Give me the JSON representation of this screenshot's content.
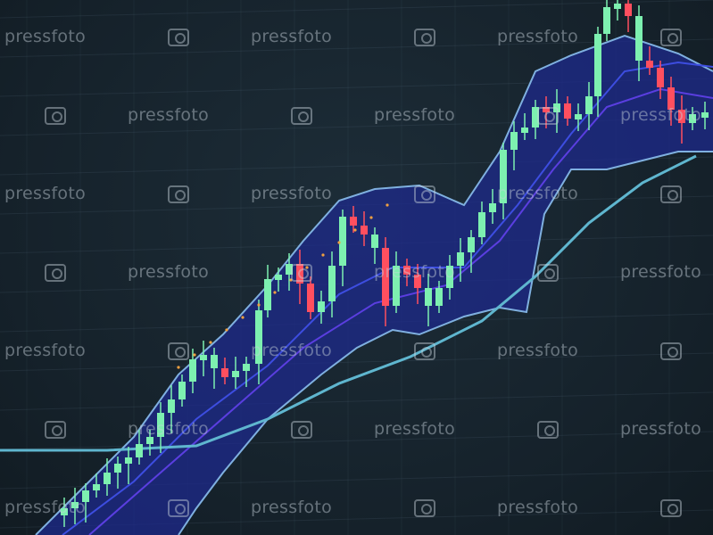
{
  "watermark": {
    "text": "pressfoto",
    "icon": "camera-icon"
  },
  "colors": {
    "background": "#17242e",
    "band_fill": "#1e2a8c",
    "band_edge": "#7fb0e0",
    "moving_average": "#5fb6cf",
    "candle_up": "#7df0b0",
    "candle_down": "#ff4f5f",
    "inner_line": "#3d4de0"
  }
}
